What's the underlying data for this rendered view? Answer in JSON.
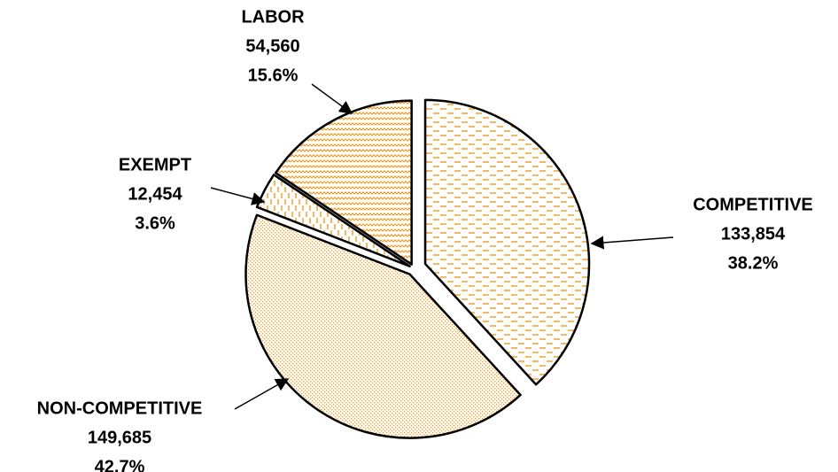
{
  "chart_data": {
    "type": "pie",
    "categories": [
      "COMPETITIVE",
      "NON-COMPETITIVE",
      "EXEMPT",
      "LABOR"
    ],
    "values": [
      133854,
      149685,
      12454,
      54560
    ],
    "value_labels": [
      "133,854",
      "149,685",
      "12,454",
      "54,560"
    ],
    "percents": [
      38.2,
      42.7,
      3.6,
      15.6
    ],
    "percent_labels": [
      "38.2%",
      "42.7%",
      "3.6%",
      "15.6%"
    ],
    "color": "#f29b1d"
  }
}
